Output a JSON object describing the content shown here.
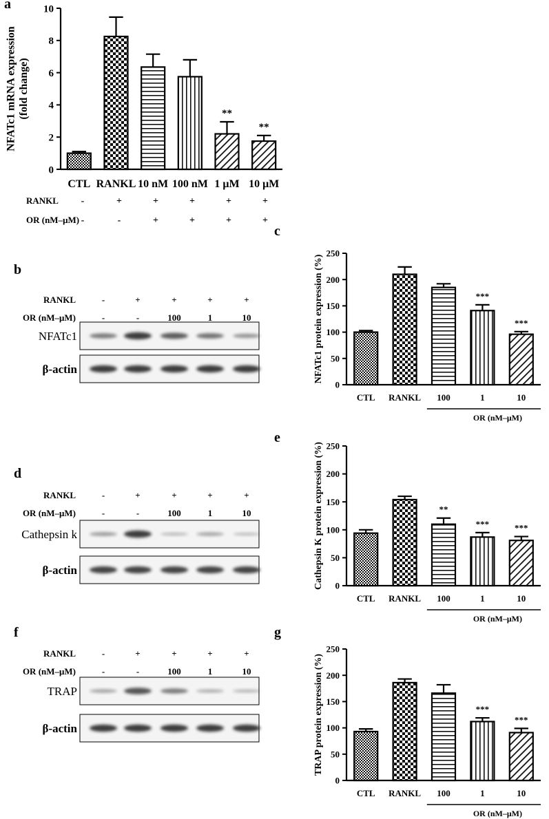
{
  "panel_labels": {
    "a": "a",
    "b": "b",
    "c": "c",
    "d": "d",
    "e": "e",
    "f": "f",
    "g": "g"
  },
  "colors": {
    "bar_stroke": "#000000",
    "blot_bg": "#f4f4f4",
    "band": "#2a2a2a"
  },
  "chart_data": [
    {
      "panel": "a",
      "type": "bar",
      "ylabel": "NFATc1 mRNA expression\n(fold change)",
      "ylim": [
        0,
        10
      ],
      "yticks": [
        0,
        2,
        4,
        6,
        8,
        10
      ],
      "categories": [
        "CTL",
        "RANKL",
        "10 nM",
        "100 nM",
        "1 μM",
        "10 μM"
      ],
      "values": [
        1.0,
        8.25,
        6.35,
        5.75,
        2.2,
        1.75
      ],
      "errors": [
        0.1,
        1.2,
        0.8,
        1.05,
        0.75,
        0.35
      ],
      "annotations": [
        "",
        "",
        "",
        "",
        "**",
        "**"
      ],
      "patterns": [
        "dense",
        "checker",
        "hlines",
        "vlines",
        "diag",
        "diag"
      ],
      "condition_rows": [
        {
          "label": "RANKL",
          "marks": [
            "-",
            "+",
            "+",
            "+",
            "+",
            "+"
          ]
        },
        {
          "label": "OR (nM–μM)",
          "marks": [
            "-",
            "-",
            "+",
            "+",
            "+",
            "+"
          ]
        }
      ]
    },
    {
      "panel": "c",
      "type": "bar",
      "ylabel": "NFATc1 protein expression (%)",
      "ylim": [
        0,
        250
      ],
      "yticks": [
        0,
        50,
        100,
        150,
        200,
        250
      ],
      "categories": [
        "CTL",
        "RANKL",
        "100",
        "1",
        "10"
      ],
      "values": [
        100,
        210,
        185,
        141,
        96
      ],
      "errors": [
        3,
        14,
        7,
        11,
        5
      ],
      "annotations": [
        "",
        "",
        "",
        "***",
        "***"
      ],
      "patterns": [
        "dense",
        "checker",
        "hlines",
        "vlines",
        "diag"
      ],
      "group_label": "OR (nM–μM)"
    },
    {
      "panel": "e",
      "type": "bar",
      "ylabel": "Cathepsin K protein expression (%)",
      "ylim": [
        0,
        250
      ],
      "yticks": [
        0,
        50,
        100,
        150,
        200,
        250
      ],
      "categories": [
        "CTL",
        "RANKL",
        "100",
        "1",
        "10"
      ],
      "values": [
        94,
        154,
        110,
        87,
        81
      ],
      "errors": [
        6,
        6,
        11,
        8,
        7
      ],
      "annotations": [
        "",
        "",
        "**",
        "***",
        "***"
      ],
      "patterns": [
        "dense",
        "checker",
        "hlines",
        "vlines",
        "diag"
      ],
      "group_label": "OR (nM–μM)"
    },
    {
      "panel": "g",
      "type": "bar",
      "ylabel": "TRAP protein expression (%)",
      "ylim": [
        0,
        250
      ],
      "yticks": [
        0,
        50,
        100,
        150,
        200,
        250
      ],
      "categories": [
        "CTL",
        "RANKL",
        "100",
        "1",
        "10"
      ],
      "values": [
        93,
        186,
        166,
        112,
        91
      ],
      "errors": [
        5,
        7,
        16,
        7,
        8
      ],
      "annotations": [
        "",
        "",
        "",
        "***",
        "***"
      ],
      "patterns": [
        "dense",
        "checker",
        "hlines",
        "vlines",
        "diag"
      ],
      "group_label": "OR (nM–μM)"
    }
  ],
  "blots": [
    {
      "panel": "b",
      "conditions": [
        {
          "label": "RANKL",
          "marks": [
            "-",
            "+",
            "+",
            "+",
            "+"
          ]
        },
        {
          "label": "OR (nM–μM)",
          "marks": [
            "-",
            "-",
            "100",
            "1",
            "10"
          ]
        }
      ],
      "rows": [
        {
          "label": "NFATc1",
          "intensity": [
            0.55,
            0.95,
            0.75,
            0.6,
            0.4
          ]
        },
        {
          "label": "β-actin",
          "intensity": [
            0.95,
            0.95,
            0.95,
            0.95,
            0.95
          ]
        }
      ]
    },
    {
      "panel": "d",
      "conditions": [
        {
          "label": "RANKL",
          "marks": [
            "-",
            "+",
            "+",
            "+",
            "+"
          ]
        },
        {
          "label": "OR (nM–μM)",
          "marks": [
            "-",
            "-",
            "100",
            "1",
            "10"
          ]
        }
      ],
      "rows": [
        {
          "label": "Cathepsin k",
          "intensity": [
            0.35,
            0.95,
            0.18,
            0.3,
            0.15
          ]
        },
        {
          "label": "β-actin",
          "intensity": [
            0.9,
            0.9,
            0.9,
            0.9,
            0.9
          ]
        }
      ]
    },
    {
      "panel": "f",
      "conditions": [
        {
          "label": "RANKL",
          "marks": [
            "-",
            "+",
            "+",
            "+",
            "+"
          ]
        },
        {
          "label": "OR (nM–μM)",
          "marks": [
            "-",
            "-",
            "100",
            "1",
            "10"
          ]
        }
      ],
      "rows": [
        {
          "label": "TRAP",
          "intensity": [
            0.3,
            0.8,
            0.55,
            0.25,
            0.2
          ]
        },
        {
          "label": "β-actin",
          "intensity": [
            0.95,
            0.95,
            0.95,
            0.95,
            0.95
          ]
        }
      ]
    }
  ]
}
